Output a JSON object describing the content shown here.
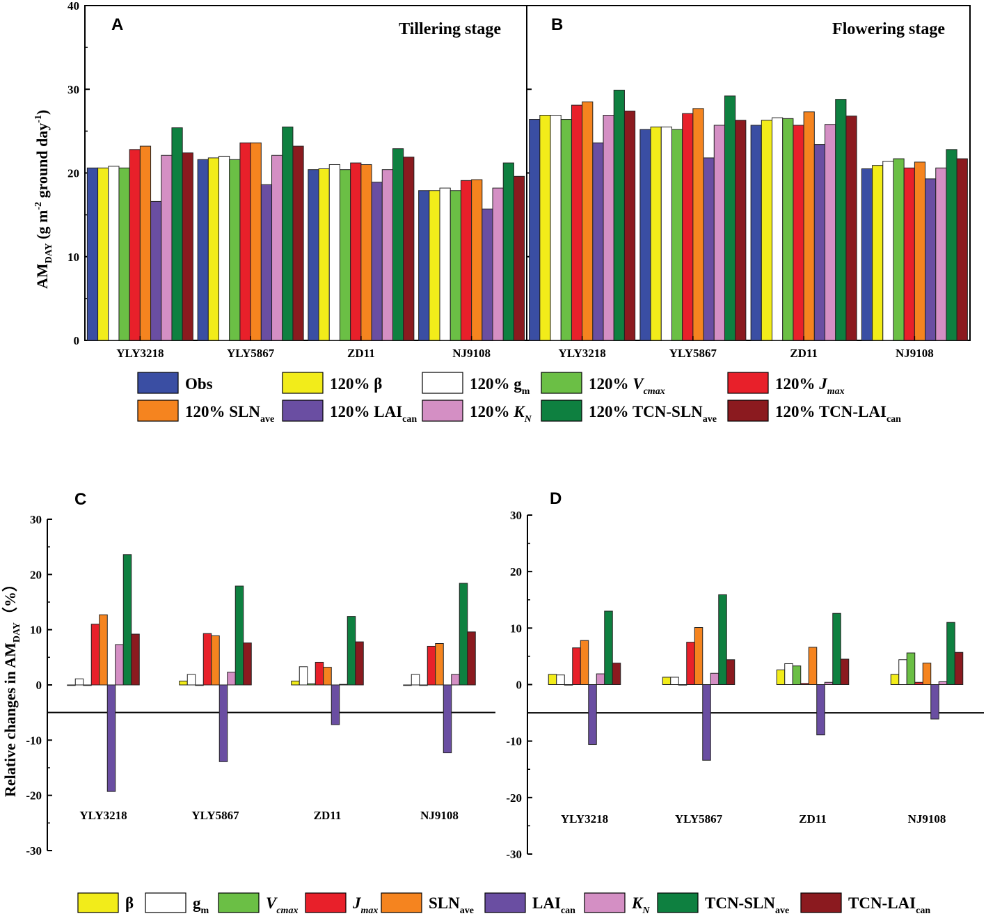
{
  "categories": [
    "YLY3218",
    "YLY5867",
    "ZD11",
    "NJ9108"
  ],
  "top_ylabel": "AM",
  "top_ylabel_sub": "DAY",
  "top_ylabel_rest": " (g m",
  "top_ylabel_sup1": "-2",
  "top_ylabel_mid": " ground day",
  "top_ylabel_sup2": "-1",
  "top_ylabel_end": ")",
  "bottom_ylabel": "Relative changes in AM",
  "bottom_ylabel_sub": "DAY",
  "bottom_ylabel_end": "（%）",
  "legend_top": [
    {
      "key": "obs",
      "pre": "Obs",
      "it": "",
      "sub": "",
      "color": "#3a4ea3"
    },
    {
      "key": "beta",
      "pre": "120% β",
      "it": "",
      "sub": "",
      "color": "#f2ec1a"
    },
    {
      "key": "gm",
      "pre": "120% g",
      "it": "",
      "sub": "m",
      "color": "#ffffff"
    },
    {
      "key": "vcmax",
      "pre": "120% ",
      "it": "V",
      "sub": "cmax",
      "color": "#6bbf45"
    },
    {
      "key": "jmax",
      "pre": "120% ",
      "it": "J",
      "sub": "max",
      "color": "#e8202a"
    },
    {
      "key": "sln",
      "pre": "120% SLN",
      "it": "",
      "sub": "ave",
      "color": "#f5841f"
    },
    {
      "key": "lai",
      "pre": "120% LAI",
      "it": "",
      "sub": "can",
      "color": "#6a4ea2"
    },
    {
      "key": "kn",
      "pre": "120% ",
      "it": "K",
      "sub": "N",
      "color": "#d48fc4"
    },
    {
      "key": "tcnsln",
      "pre": "120% TCN-SLN",
      "it": "",
      "sub": "ave",
      "color": "#0e8040"
    },
    {
      "key": "tcnlai",
      "pre": "120% TCN-LAI",
      "it": "",
      "sub": "can",
      "color": "#8b1a1f"
    }
  ],
  "legend_bottom": [
    {
      "key": "beta",
      "pre": "β",
      "it": "",
      "sub": "",
      "color": "#f2ec1a"
    },
    {
      "key": "gm",
      "pre": "g",
      "it": "",
      "sub": "m",
      "color": "#ffffff"
    },
    {
      "key": "vcmax",
      "pre": "",
      "it": "V",
      "sub": "cmax",
      "color": "#6bbf45"
    },
    {
      "key": "jmax",
      "pre": "",
      "it": "J",
      "sub": "max",
      "color": "#e8202a"
    },
    {
      "key": "sln",
      "pre": "SLN",
      "it": "",
      "sub": "ave",
      "color": "#f5841f"
    },
    {
      "key": "lai",
      "pre": "LAI",
      "it": "",
      "sub": "can",
      "color": "#6a4ea2"
    },
    {
      "key": "kn",
      "pre": "",
      "it": "K",
      "sub": "N",
      "color": "#d48fc4"
    },
    {
      "key": "tcnsln",
      "pre": "TCN-SLN",
      "it": "",
      "sub": "ave",
      "color": "#0e8040"
    },
    {
      "key": "tcnlai",
      "pre": "TCN-LAI",
      "it": "",
      "sub": "can",
      "color": "#8b1a1f"
    }
  ],
  "chart_data": [
    {
      "panel": "A",
      "title": "Tillering stage",
      "type": "bar",
      "ylim": [
        0,
        40
      ],
      "yticks": [
        0,
        10,
        20,
        30,
        40
      ],
      "categories": [
        "YLY3218",
        "YLY5867",
        "ZD11",
        "NJ9108"
      ],
      "series": [
        {
          "name": "Obs",
          "values": [
            20.6,
            21.6,
            20.4,
            17.9
          ]
        },
        {
          "name": "120% β",
          "values": [
            20.6,
            21.8,
            20.5,
            17.9
          ]
        },
        {
          "name": "120% gm",
          "values": [
            20.8,
            22.0,
            21.0,
            18.2
          ]
        },
        {
          "name": "120% Vcmax",
          "values": [
            20.6,
            21.6,
            20.4,
            17.9
          ]
        },
        {
          "name": "120% Jmax",
          "values": [
            22.8,
            23.6,
            21.2,
            19.1
          ]
        },
        {
          "name": "120% SLNave",
          "values": [
            23.2,
            23.6,
            21.0,
            19.2
          ]
        },
        {
          "name": "120% LAIcan",
          "values": [
            16.6,
            18.6,
            18.9,
            15.7
          ]
        },
        {
          "name": "120% KN",
          "values": [
            22.1,
            22.1,
            20.4,
            18.2
          ]
        },
        {
          "name": "120% TCN-SLNave",
          "values": [
            25.4,
            25.5,
            22.9,
            21.2
          ]
        },
        {
          "name": "120% TCN-LAIcan",
          "values": [
            22.4,
            23.2,
            21.9,
            19.6
          ]
        }
      ]
    },
    {
      "panel": "B",
      "title": "Flowering stage",
      "type": "bar",
      "ylim": [
        0,
        40
      ],
      "yticks": [
        0,
        10,
        20,
        30,
        40
      ],
      "categories": [
        "YLY3218",
        "YLY5867",
        "ZD11",
        "NJ9108"
      ],
      "series": [
        {
          "name": "Obs",
          "values": [
            26.4,
            25.2,
            25.7,
            20.5
          ]
        },
        {
          "name": "120% β",
          "values": [
            26.9,
            25.5,
            26.3,
            20.9
          ]
        },
        {
          "name": "120% gm",
          "values": [
            26.9,
            25.5,
            26.6,
            21.4
          ]
        },
        {
          "name": "120% Vcmax",
          "values": [
            26.4,
            25.2,
            26.5,
            21.7
          ]
        },
        {
          "name": "120% Jmax",
          "values": [
            28.1,
            27.1,
            25.7,
            20.6
          ]
        },
        {
          "name": "120% SLNave",
          "values": [
            28.5,
            27.7,
            27.3,
            21.3
          ]
        },
        {
          "name": "120% LAIcan",
          "values": [
            23.6,
            21.8,
            23.4,
            19.3
          ]
        },
        {
          "name": "120% KN",
          "values": [
            26.9,
            25.7,
            25.8,
            20.6
          ]
        },
        {
          "name": "120% TCN-SLNave",
          "values": [
            29.9,
            29.2,
            28.8,
            22.8
          ]
        },
        {
          "name": "120% TCN-LAIcan",
          "values": [
            27.4,
            26.3,
            26.8,
            21.7
          ]
        }
      ]
    },
    {
      "panel": "C",
      "title": "",
      "type": "bar",
      "ylim": [
        -30,
        30
      ],
      "yticks": [
        -30,
        -20,
        -10,
        0,
        10,
        20,
        30
      ],
      "categories": [
        "YLY3218",
        "YLY5867",
        "ZD11",
        "NJ9108"
      ],
      "series": [
        {
          "name": "β",
          "values": [
            0.0,
            0.7,
            0.7,
            0.0
          ]
        },
        {
          "name": "gm",
          "values": [
            1.1,
            1.9,
            3.3,
            1.9
          ]
        },
        {
          "name": "Vcmax",
          "values": [
            0.0,
            0.0,
            0.2,
            0.0
          ]
        },
        {
          "name": "Jmax",
          "values": [
            11.0,
            9.3,
            4.1,
            7.0
          ]
        },
        {
          "name": "SLNave",
          "values": [
            12.7,
            8.9,
            3.2,
            7.5
          ]
        },
        {
          "name": "LAIcan",
          "values": [
            -19.3,
            -13.9,
            -7.2,
            -12.3
          ]
        },
        {
          "name": "KN",
          "values": [
            7.3,
            2.3,
            0.1,
            1.9
          ]
        },
        {
          "name": "TCN-SLNave",
          "values": [
            23.6,
            17.9,
            12.4,
            18.4
          ]
        },
        {
          "name": "TCN-LAIcan",
          "values": [
            9.2,
            7.6,
            7.8,
            9.6
          ]
        }
      ]
    },
    {
      "panel": "D",
      "title": "",
      "type": "bar",
      "ylim": [
        -30,
        30
      ],
      "yticks": [
        -30,
        -20,
        -10,
        0,
        10,
        20,
        30
      ],
      "categories": [
        "YLY3218",
        "YLY5867",
        "ZD11",
        "NJ9108"
      ],
      "series": [
        {
          "name": "β",
          "values": [
            1.8,
            1.3,
            2.6,
            1.8
          ]
        },
        {
          "name": "gm",
          "values": [
            1.7,
            1.3,
            3.7,
            4.4
          ]
        },
        {
          "name": "Vcmax",
          "values": [
            0.0,
            0.0,
            3.3,
            5.6
          ]
        },
        {
          "name": "Jmax",
          "values": [
            6.5,
            7.5,
            0.2,
            0.4
          ]
        },
        {
          "name": "SLNave",
          "values": [
            7.8,
            10.1,
            6.6,
            3.8
          ]
        },
        {
          "name": "LAIcan",
          "values": [
            -10.6,
            -13.4,
            -8.9,
            -6.1
          ]
        },
        {
          "name": "KN",
          "values": [
            1.9,
            2.0,
            0.4,
            0.5
          ]
        },
        {
          "name": "TCN-SLNave",
          "values": [
            13.0,
            15.9,
            12.6,
            11.0
          ]
        },
        {
          "name": "TCN-LAIcan",
          "values": [
            3.8,
            4.4,
            4.5,
            5.7
          ]
        }
      ]
    }
  ]
}
